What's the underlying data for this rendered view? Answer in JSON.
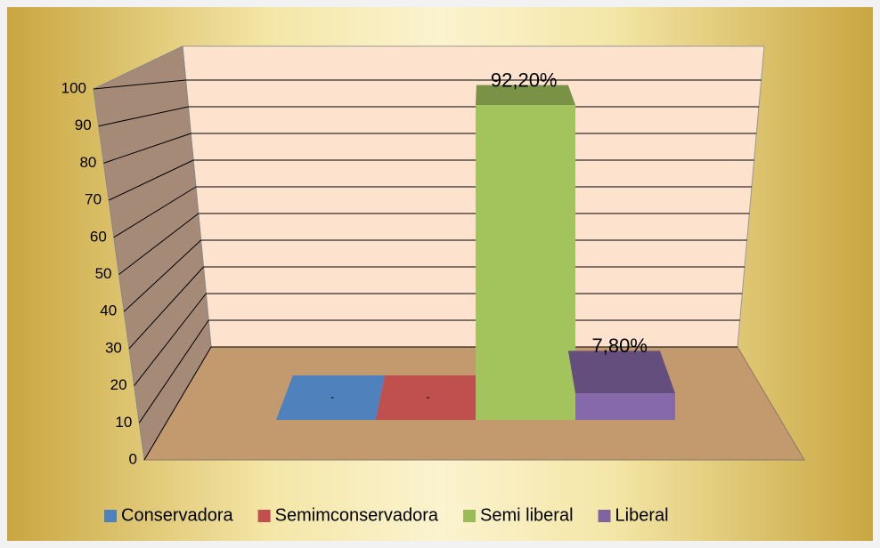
{
  "chart_data": {
    "type": "bar3d",
    "series": [
      {
        "name": "Conservadora",
        "color": "#4f81bd",
        "values": [
          0
        ],
        "value_labels": [
          "-"
        ]
      },
      {
        "name": "Semimconservadora",
        "color": "#c0504d",
        "values": [
          0
        ],
        "value_labels": [
          "-"
        ]
      },
      {
        "name": "Semi liberal",
        "color": "#9bbb59",
        "values": [
          92.2
        ],
        "value_labels": [
          "92,20%"
        ]
      },
      {
        "name": "Liberal",
        "color": "#8064a2",
        "values": [
          7.8
        ],
        "value_labels": [
          "7,80%"
        ]
      }
    ],
    "ylim": [
      0,
      100
    ],
    "yticks": [
      0,
      10,
      20,
      30,
      40,
      50,
      60,
      70,
      80,
      90,
      100
    ],
    "grid": true,
    "legend": "bottom"
  }
}
